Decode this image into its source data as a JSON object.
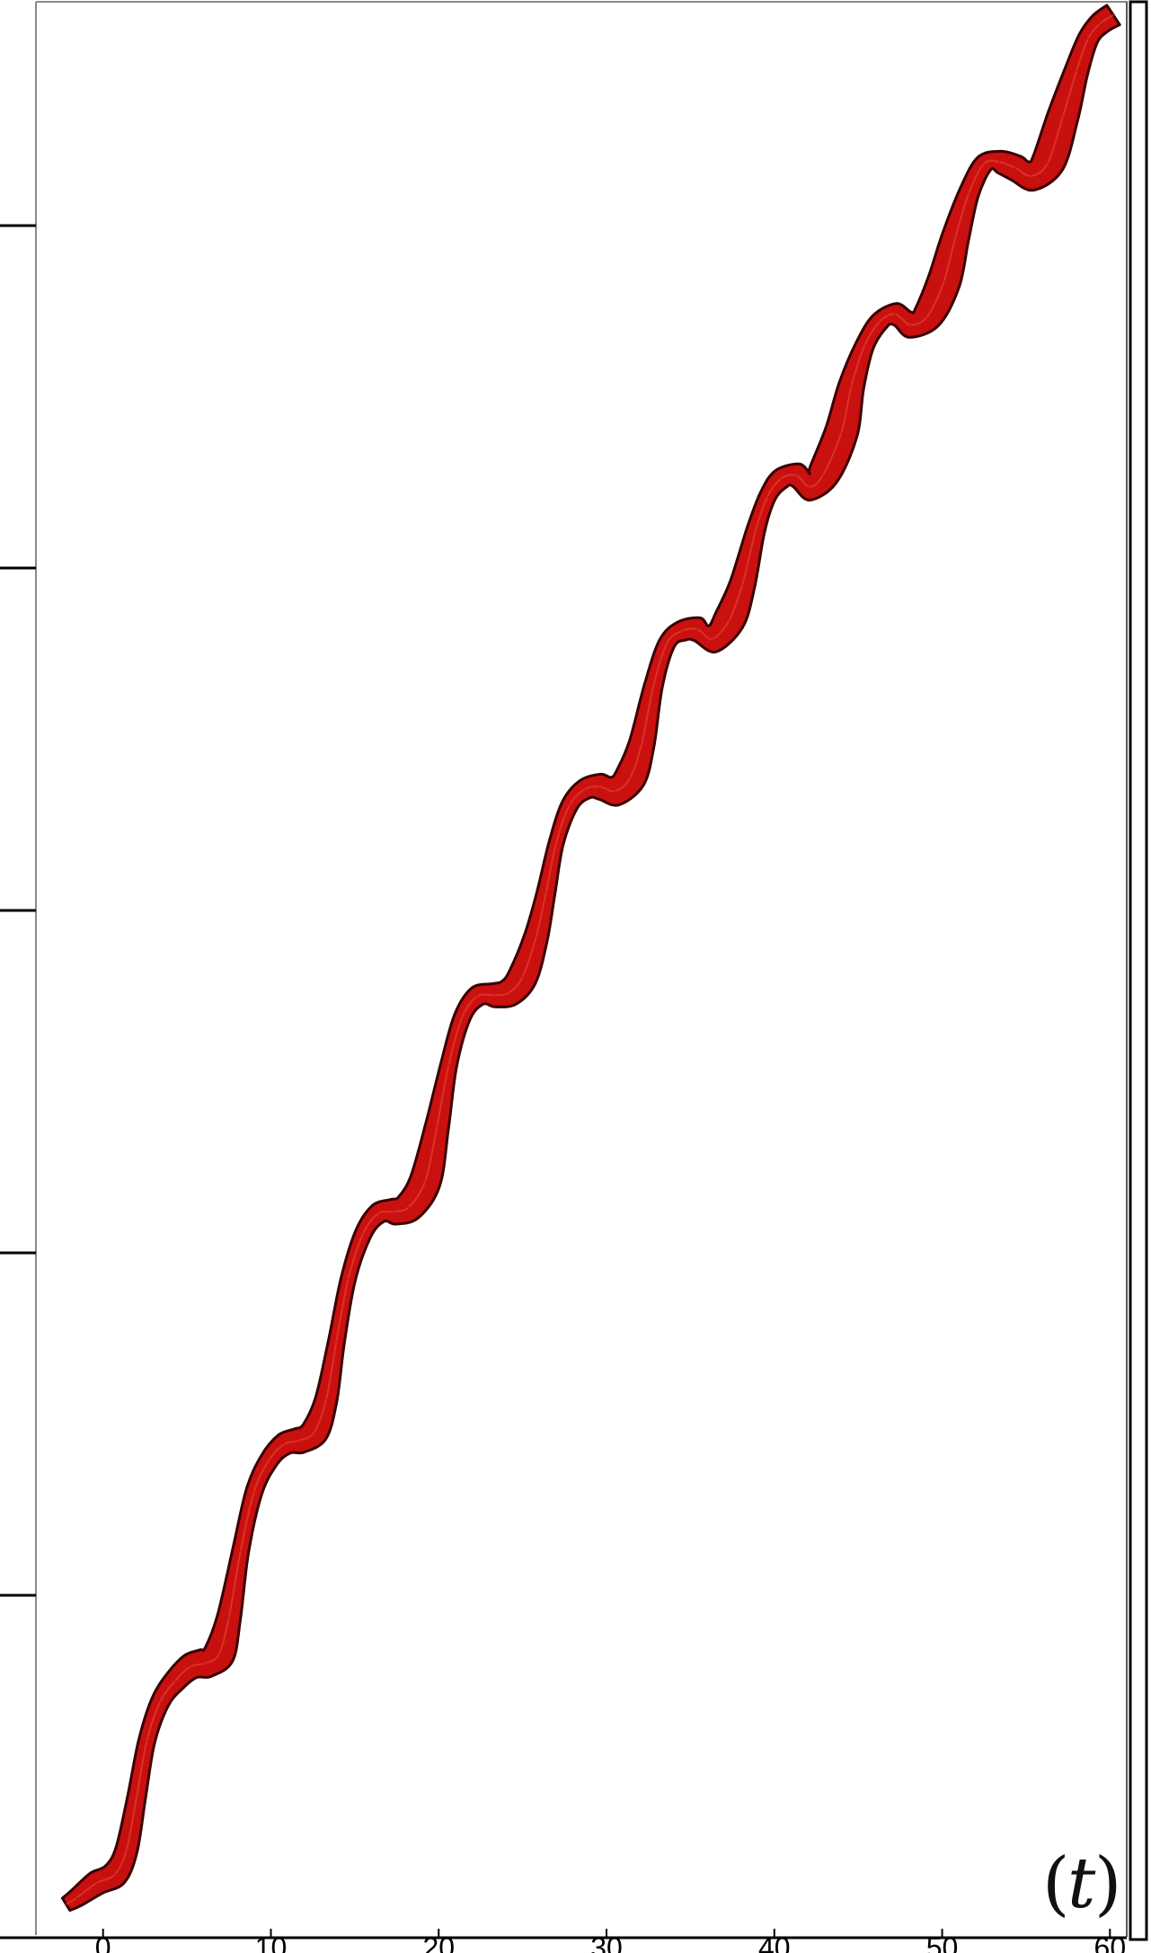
{
  "chart_data": {
    "type": "line",
    "title": "",
    "xlabel": "",
    "ylabel": "",
    "panel_label": "t",
    "xlim": [
      -4,
      61
    ],
    "x_ticks": [
      0,
      10,
      20,
      30,
      40,
      50,
      60
    ],
    "x_tick_labels": [
      "0",
      "10",
      "20",
      "30",
      "40",
      "50",
      "60"
    ],
    "y_tick_count": 5,
    "y_tick_labels": [],
    "grid": false,
    "legend": "none",
    "series": [
      {
        "style": "ribbon",
        "color": "#c8100f",
        "edge_color": "#3a0000",
        "x": [
          -2.2,
          -1.6,
          -0.4,
          0.7,
          1.4,
          2.0,
          2.6,
          3.4,
          4.3,
          5.2,
          6.1,
          6.9,
          7.5,
          8.2,
          9.0,
          9.9,
          10.8,
          11.7,
          12.6,
          13.3,
          13.9,
          14.6,
          15.5,
          16.4,
          17.3,
          18.2,
          19.2,
          19.9,
          20.6,
          21.4,
          22.3,
          23.3,
          24.2,
          25.0,
          25.8,
          26.4,
          27.0,
          27.8,
          28.7,
          29.6,
          30.5,
          31.4,
          32.1,
          32.8,
          33.6,
          34.5,
          35.4,
          36.3,
          37.3,
          38.1,
          38.9,
          39.6,
          40.4,
          41.3,
          42.1,
          42.9,
          44.0,
          44.6,
          45.4,
          46.3,
          47.2,
          48.1,
          49.1,
          50.1,
          50.8,
          51.6,
          52.5,
          53.4,
          54.4,
          55.3,
          56.3,
          57.2,
          58.0,
          58.7,
          59.4,
          60.2
        ],
        "y": [
          38,
          45,
          62,
          72,
          100,
          160,
          223,
          268,
          292,
          308,
          312,
          322,
          364,
          440,
          507,
          543,
          561,
          565,
          575,
          612,
          677,
          748,
          800,
          823,
          825,
          830,
          860,
          922,
          992,
          1046,
          1070,
          1071,
          1074,
          1092,
          1137,
          1188,
          1244,
          1287,
          1305,
          1308,
          1303,
          1318,
          1357,
          1423,
          1471,
          1485,
          1487,
          1476,
          1497,
          1538,
          1600,
          1638,
          1658,
          1662,
          1649,
          1662,
          1711,
          1764,
          1810,
          1837,
          1845,
          1833,
          1842,
          1882,
          1933,
          1983,
          2016,
          2018,
          2011,
          2002,
          2017,
          2070,
          2121,
          2158,
          2175,
          2185
        ],
        "thickness": [
          16,
          20,
          26,
          28,
          24,
          20,
          18,
          20,
          24,
          28,
          32,
          34,
          26,
          18,
          18,
          20,
          24,
          28,
          30,
          24,
          18,
          16,
          18,
          22,
          28,
          32,
          34,
          26,
          18,
          18,
          22,
          26,
          30,
          32,
          26,
          20,
          16,
          18,
          22,
          28,
          32,
          34,
          28,
          20,
          18,
          22,
          26,
          30,
          34,
          28,
          20,
          18,
          22,
          26,
          30,
          34,
          36,
          28,
          20,
          20,
          24,
          28,
          32,
          36,
          30,
          22,
          20,
          24,
          28,
          32,
          36,
          34,
          26,
          22,
          24,
          26
        ]
      }
    ]
  }
}
